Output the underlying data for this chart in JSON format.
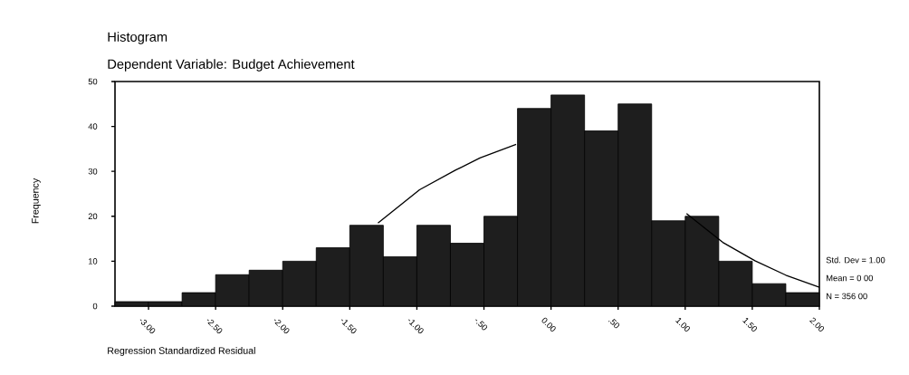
{
  "chart_data": {
    "type": "histogram",
    "title": "Histogram",
    "subtitle": "Dependent Variable: Budget Achievement",
    "xlabel": "Regression Standardized Residual",
    "ylabel": "Frequency",
    "bins": [
      -3.25,
      -3.0,
      -2.75,
      -2.5,
      -2.25,
      -2.0,
      -1.75,
      -1.5,
      -1.25,
      -1.0,
      -0.75,
      -0.5,
      -0.25,
      0.0,
      0.25,
      0.5,
      0.75,
      1.0,
      1.25,
      1.5,
      1.75,
      2.0
    ],
    "values": [
      1,
      1,
      3,
      7,
      8,
      10,
      13,
      18,
      11,
      18,
      14,
      20,
      44,
      47,
      39,
      45,
      19,
      20,
      10,
      5,
      3
    ],
    "color": "#1e1e1e",
    "series": [
      {
        "type": "line",
        "color": "#000000",
        "x": [
          -1.29,
          -0.98,
          -0.71,
          -0.53,
          -0.26,
          0.77,
          1.01,
          1.28,
          1.52,
          1.75,
          2.0
        ],
        "values": [
          18.5,
          25.9,
          30.3,
          33,
          36,
          null,
          20.6,
          14.2,
          10.1,
          6.9,
          4.2
        ]
      }
    ],
    "xlim": [
      -3.25,
      2.0
    ],
    "ylim": [
      0,
      50
    ],
    "xticks": [
      {
        "value": -3.0,
        "label": "-3.00"
      },
      {
        "value": -2.5,
        "label": "-2.50"
      },
      {
        "value": -2.0,
        "label": "-2.00"
      },
      {
        "value": -1.5,
        "label": "-1.50"
      },
      {
        "value": -1.0,
        "label": "-1.00"
      },
      {
        "value": -0.5,
        "label": "-.50"
      },
      {
        "value": 0.0,
        "label": "0.00"
      },
      {
        "value": 0.5,
        "label": ".50"
      },
      {
        "value": 1.0,
        "label": "1.00"
      },
      {
        "value": 1.5,
        "label": "1.50"
      },
      {
        "value": 2.0,
        "label": "2.00"
      }
    ],
    "yticks": [
      0,
      10,
      20,
      30,
      40,
      50
    ],
    "annotations": [
      "Std. Dev = 1.00",
      "Mean = 0 00",
      "N = 356 00"
    ],
    "grid": false
  }
}
